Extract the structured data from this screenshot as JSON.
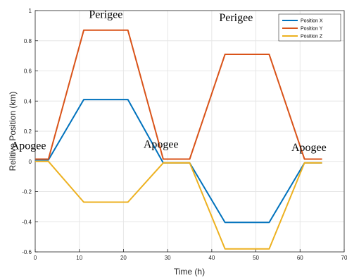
{
  "chart_data": {
    "type": "line",
    "title": "",
    "xlabel": "Time (h)",
    "ylabel": "Relitive Position (km)",
    "xlim": [
      0,
      70
    ],
    "ylim": [
      -0.6,
      1
    ],
    "xticks": [
      "0",
      "10",
      "20",
      "30",
      "40",
      "50",
      "60",
      "70"
    ],
    "yticks": [
      "-0.6",
      "-0.4",
      "-0.2",
      "0",
      "0.2",
      "0.4",
      "0.6",
      "0.8",
      "1"
    ],
    "grid": true,
    "legend_position": "top-right",
    "series": [
      {
        "name": "Position X",
        "color": "#0072BD",
        "x": [
          0,
          3,
          11,
          21,
          29,
          35,
          43,
          53,
          61,
          65
        ],
        "y": [
          0.01,
          0.01,
          0.41,
          0.41,
          -0.01,
          -0.01,
          -0.405,
          -0.405,
          -0.01,
          -0.01
        ]
      },
      {
        "name": "Position Y",
        "color": "#D95319",
        "x": [
          0,
          3,
          11,
          21,
          29,
          35,
          43,
          53,
          61,
          65
        ],
        "y": [
          0.015,
          0.015,
          0.87,
          0.87,
          0.015,
          0.015,
          0.71,
          0.71,
          0.015,
          0.015
        ]
      },
      {
        "name": "Position Z",
        "color": "#EDB120",
        "x": [
          0,
          3,
          11,
          21,
          29,
          35,
          43,
          53,
          61,
          65
        ],
        "y": [
          0.0,
          0.0,
          -0.27,
          -0.27,
          -0.01,
          -0.01,
          -0.58,
          -0.58,
          -0.01,
          -0.01
        ]
      }
    ],
    "annotations": [
      {
        "text": "Perigee",
        "x": 16,
        "y": 0.95
      },
      {
        "text": "Perigee",
        "x": 45.5,
        "y": 0.93
      },
      {
        "text": "Apogee",
        "x": -1.5,
        "y": 0.08
      },
      {
        "text": "Apogee",
        "x": 28.5,
        "y": 0.09
      },
      {
        "text": "Apogee",
        "x": 62,
        "y": 0.07
      }
    ]
  }
}
